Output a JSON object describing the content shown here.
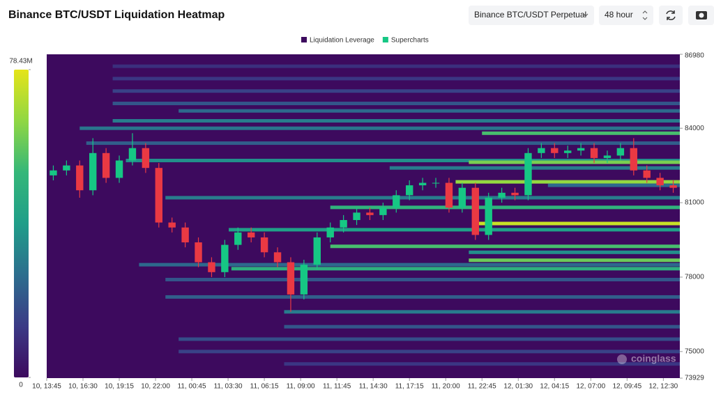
{
  "header": {
    "title": "Binance BTC/USDT Liquidation Heatmap",
    "exchange_select": "Binance BTC/USDT Perpetual",
    "range_select": "48 hour"
  },
  "chart_data": {
    "type": "liquidation-heatmap",
    "legend": [
      {
        "name": "Liquidation Leverage",
        "color": "#3d0a5e"
      },
      {
        "name": "Supercharts",
        "color": "#16c784"
      }
    ],
    "watermark": "coinglass",
    "colorbar": {
      "lim": [
        0,
        78.43
      ],
      "ticks": [
        0,
        {
          "value": 78.43,
          "label": "78.43M"
        }
      ],
      "colors": [
        "#3d0a5e",
        "#3b3a86",
        "#2c6e8e",
        "#1f9e89",
        "#35b779",
        "#90d743",
        "#e5e419"
      ]
    },
    "ylim": [
      73929,
      86980
    ],
    "yticks": [
      86980,
      84000,
      81000,
      78000,
      75000,
      73929
    ],
    "xlim": [
      0,
      48
    ],
    "xticks": [
      {
        "value": 0,
        "label": "10, 13:45"
      },
      {
        "value": 2.75,
        "label": "10, 16:30"
      },
      {
        "value": 5.5,
        "label": "10, 19:15"
      },
      {
        "value": 8.25,
        "label": "10, 22:00"
      },
      {
        "value": 11,
        "label": "11, 00:45"
      },
      {
        "value": 13.75,
        "label": "11, 03:30"
      },
      {
        "value": 16.5,
        "label": "11, 06:15"
      },
      {
        "value": 19.25,
        "label": "11, 09:00"
      },
      {
        "value": 22,
        "label": "11, 11:45"
      },
      {
        "value": 24.75,
        "label": "11, 14:30"
      },
      {
        "value": 27.5,
        "label": "11, 17:15"
      },
      {
        "value": 30.25,
        "label": "11, 20:00"
      },
      {
        "value": 33,
        "label": "11, 22:45"
      },
      {
        "value": 35.75,
        "label": "12, 01:30"
      },
      {
        "value": 38.5,
        "label": "12, 04:15"
      },
      {
        "value": 41.25,
        "label": "12, 07:00"
      },
      {
        "value": 44,
        "label": "12, 09:45"
      },
      {
        "value": 46.75,
        "label": "12, 12:30"
      }
    ],
    "candles": {
      "up_color": "#16c784",
      "down_color": "#ea3943",
      "x": [
        0.5,
        1.5,
        2.5,
        3.5,
        4.5,
        5.5,
        6.5,
        7.5,
        8.5,
        9.5,
        10.5,
        11.5,
        12.5,
        13.5,
        14.5,
        15.5,
        16.5,
        17.5,
        18.5,
        19.5,
        20.5,
        21.5,
        22.5,
        23.5,
        24.5,
        25.5,
        26.5,
        27.5,
        28.5,
        29.5,
        30.5,
        31.5,
        32.5,
        33.5,
        34.5,
        35.5,
        36.5,
        37.5,
        38.5,
        39.5,
        40.5,
        41.5,
        42.5,
        43.5,
        44.5,
        45.5,
        46.5,
        47.5
      ],
      "open": [
        82100,
        82300,
        82500,
        81500,
        83000,
        82000,
        82700,
        83200,
        82400,
        80200,
        80000,
        79400,
        78600,
        78200,
        79300,
        79800,
        79600,
        79000,
        78600,
        77300,
        78500,
        79600,
        80000,
        80300,
        80600,
        80500,
        80800,
        81300,
        81700,
        81800,
        81800,
        80800,
        81600,
        79700,
        81200,
        81400,
        81300,
        83000,
        83200,
        83000,
        83100,
        83200,
        82800,
        82900,
        83200,
        82300,
        82000,
        81700
      ],
      "high": [
        82500,
        82700,
        82700,
        83600,
        83200,
        82900,
        83800,
        83400,
        82600,
        80400,
        80200,
        79600,
        78800,
        79500,
        80000,
        80000,
        79800,
        79200,
        78800,
        78700,
        79800,
        80200,
        80500,
        80800,
        80800,
        81000,
        81500,
        81900,
        82000,
        82000,
        82000,
        81800,
        81800,
        81400,
        81600,
        81600,
        83200,
        83400,
        83400,
        83300,
        83400,
        83400,
        83100,
        83400,
        83600,
        82500,
        82200,
        81900
      ],
      "low": [
        81900,
        82100,
        81200,
        81300,
        81800,
        81800,
        82500,
        82200,
        80000,
        79800,
        79200,
        78400,
        78000,
        78000,
        79100,
        79400,
        78800,
        78400,
        76600,
        77100,
        78300,
        79400,
        79800,
        80100,
        80300,
        80300,
        80600,
        81100,
        81500,
        81600,
        80600,
        80600,
        79500,
        79500,
        81000,
        81100,
        81100,
        82800,
        82800,
        82800,
        82900,
        82600,
        82600,
        82700,
        82100,
        81800,
        81500,
        81400
      ],
      "close": [
        82300,
        82500,
        81500,
        83000,
        82000,
        82700,
        83200,
        82400,
        80200,
        80000,
        79400,
        78600,
        78200,
        79300,
        79800,
        79600,
        79000,
        78600,
        77300,
        78500,
        79600,
        80000,
        80300,
        80600,
        80500,
        80800,
        81300,
        81700,
        81800,
        81800,
        80800,
        81600,
        79700,
        81200,
        81400,
        81300,
        83000,
        83200,
        83000,
        83100,
        83200,
        82800,
        82900,
        83200,
        82300,
        82000,
        81700,
        81600
      ]
    },
    "bands": {
      "price": [
        86500,
        86000,
        85500,
        85000,
        84700,
        84300,
        84000,
        83800,
        83400,
        82700,
        82630,
        82400,
        81840,
        81700,
        81200,
        80810,
        80160,
        79910,
        79240,
        79000,
        78680,
        78500,
        78340,
        77900,
        77200,
        76600,
        76000,
        75500,
        75000,
        74500
      ],
      "start": [
        5,
        5,
        5,
        5,
        10,
        5,
        2.5,
        33,
        3,
        6,
        32,
        26,
        31,
        38,
        9,
        21.5,
        32.7,
        13.8,
        21.5,
        32,
        32,
        7,
        14,
        9,
        9,
        18,
        18,
        10,
        10,
        18
      ],
      "value": [
        10,
        12,
        15,
        20,
        25,
        30,
        28,
        55,
        22,
        35,
        62,
        30,
        66,
        25,
        30,
        50,
        74,
        40,
        55,
        35,
        60,
        25,
        48,
        20,
        22,
        30,
        20,
        18,
        15,
        12
      ]
    }
  }
}
